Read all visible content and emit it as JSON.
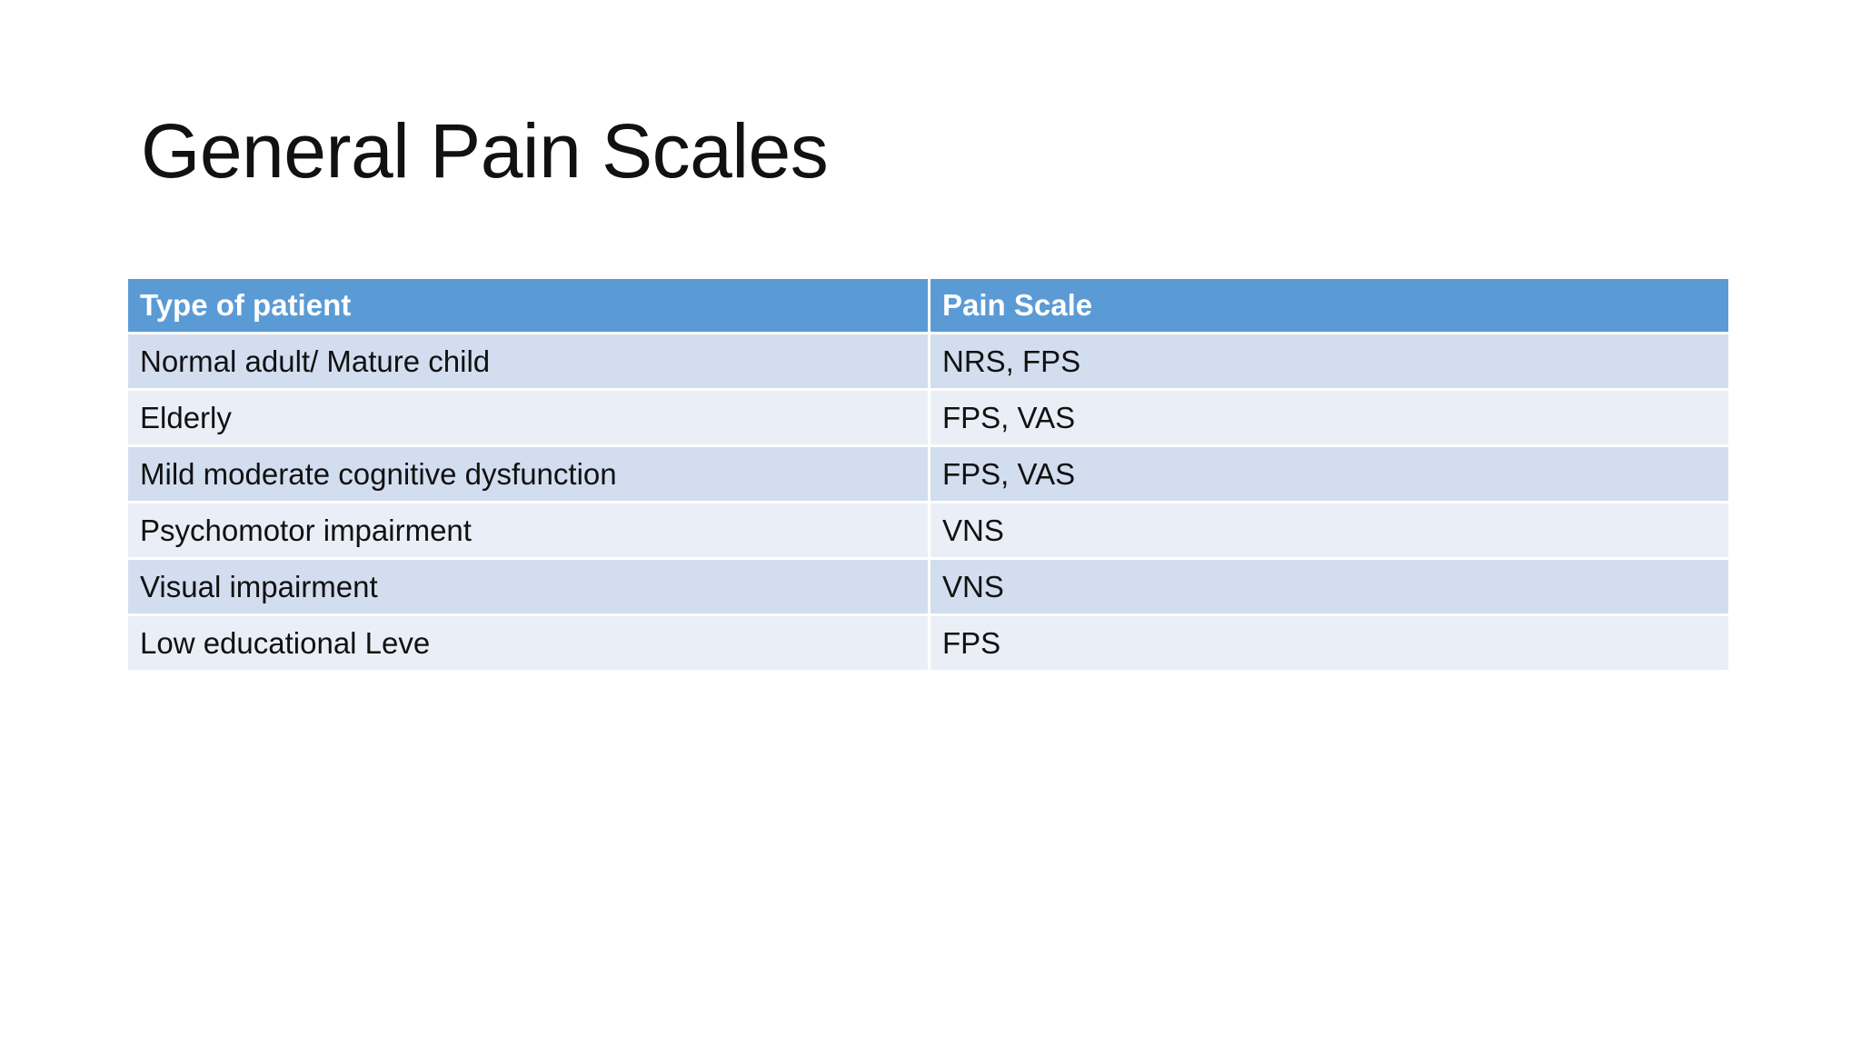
{
  "title": "General Pain Scales",
  "table": {
    "header": [
      "Type of patient",
      "Pain Scale"
    ],
    "rows": [
      [
        "Normal adult/ Mature child",
        "NRS, FPS"
      ],
      [
        "Elderly",
        "FPS, VAS"
      ],
      [
        "Mild moderate cognitive dysfunction",
        "FPS, VAS"
      ],
      [
        "Psychomotor impairment",
        "VNS"
      ],
      [
        "Visual impairment",
        "VNS"
      ],
      [
        "Low educational Leve",
        "FPS"
      ]
    ]
  }
}
